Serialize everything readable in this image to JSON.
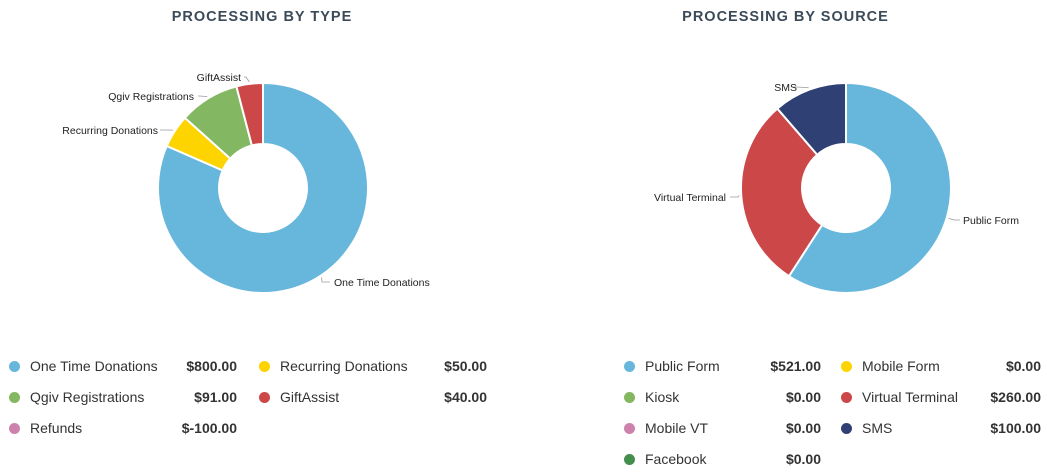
{
  "chart_data": [
    {
      "type": "pie",
      "title": "PROCESSING BY TYPE",
      "slices": [
        {
          "label": "One Time Donations",
          "value": 800.0,
          "color": "#67b6dc"
        },
        {
          "label": "Recurring Donations",
          "value": 50.0,
          "color": "#fdd400"
        },
        {
          "label": "Qgiv Registrations",
          "value": 91.0,
          "color": "#84b761"
        },
        {
          "label": "GiftAssist",
          "value": 40.0,
          "color": "#cc4748"
        }
      ],
      "legend": [
        {
          "label": "One Time Donations",
          "value": "$800.00",
          "color": "#67b6dc"
        },
        {
          "label": "Recurring Donations",
          "value": "$50.00",
          "color": "#fdd400"
        },
        {
          "label": "Qgiv Registrations",
          "value": "$91.00",
          "color": "#84b761"
        },
        {
          "label": "GiftAssist",
          "value": "$40.00",
          "color": "#cc4748"
        },
        {
          "label": "Refunds",
          "value": "$-100.00",
          "color": "#cd82ad"
        }
      ]
    },
    {
      "type": "pie",
      "title": "PROCESSING BY SOURCE",
      "slices": [
        {
          "label": "Public Form",
          "value": 521.0,
          "color": "#67b6dc"
        },
        {
          "label": "Virtual Terminal",
          "value": 260.0,
          "color": "#cc4748"
        },
        {
          "label": "SMS",
          "value": 100.0,
          "color": "#2f4074"
        }
      ],
      "legend": [
        {
          "label": "Public Form",
          "value": "$521.00",
          "color": "#67b6dc"
        },
        {
          "label": "Mobile Form",
          "value": "$0.00",
          "color": "#fdd400"
        },
        {
          "label": "Kiosk",
          "value": "$0.00",
          "color": "#84b761"
        },
        {
          "label": "Virtual Terminal",
          "value": "$260.00",
          "color": "#cc4748"
        },
        {
          "label": "Mobile VT",
          "value": "$0.00",
          "color": "#cd82ad"
        },
        {
          "label": "SMS",
          "value": "$100.00",
          "color": "#2f4074"
        },
        {
          "label": "Facebook",
          "value": "$0.00",
          "color": "#448e4d"
        }
      ]
    }
  ]
}
